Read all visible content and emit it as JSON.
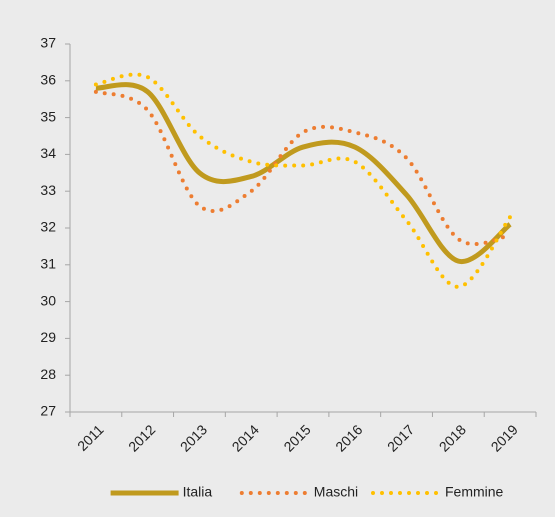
{
  "chart_data": {
    "type": "line",
    "categories": [
      "2011",
      "2012",
      "2013",
      "2014",
      "2015",
      "2016",
      "2017",
      "2018",
      "2019"
    ],
    "series": [
      {
        "name": "Italia",
        "color": "#c09a1e",
        "style": "solid",
        "values": [
          35.8,
          35.7,
          33.5,
          33.4,
          34.2,
          34.2,
          32.9,
          31.1,
          32.1
        ]
      },
      {
        "name": "Maschi",
        "color": "#ed7d31",
        "style": "dotted",
        "values": [
          35.7,
          35.2,
          32.6,
          33.0,
          34.6,
          34.6,
          33.9,
          31.7,
          31.8
        ]
      },
      {
        "name": "Femmine",
        "color": "#ffc000",
        "style": "dotted",
        "values": [
          35.9,
          36.1,
          34.5,
          33.8,
          33.7,
          33.8,
          32.2,
          30.4,
          32.3
        ]
      }
    ],
    "ylim": [
      27,
      37
    ],
    "yticks": [
      27,
      28,
      29,
      30,
      31,
      32,
      33,
      34,
      35,
      36,
      37
    ],
    "legend": "bottom",
    "smooth": true
  }
}
